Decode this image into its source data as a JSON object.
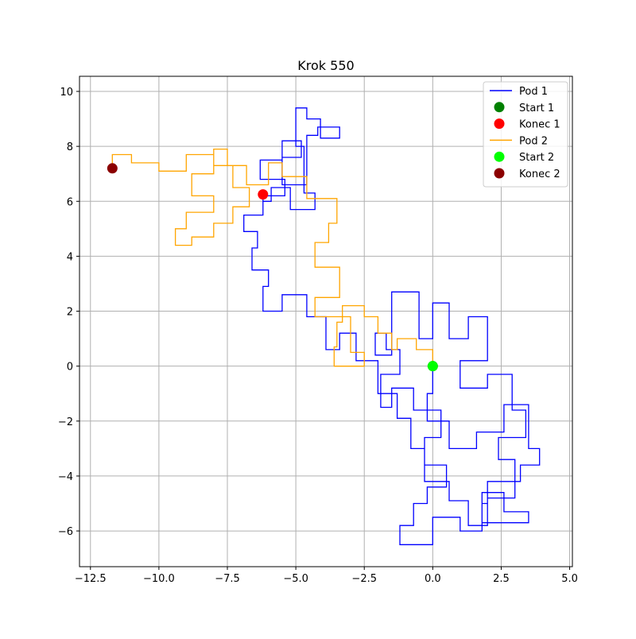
{
  "chart_data": {
    "type": "line",
    "title": "Krok 550",
    "xlabel": "",
    "ylabel": "",
    "xlim": [
      -12.9,
      5.1
    ],
    "ylim": [
      -7.3,
      10.55
    ],
    "xticks": [
      -12.5,
      -10.0,
      -7.5,
      -5.0,
      -2.5,
      0.0,
      2.5,
      5.0
    ],
    "xtick_labels": [
      "−12.5",
      "−10.0",
      "−7.5",
      "−5.0",
      "−2.5",
      "0.0",
      "2.5",
      "5.0"
    ],
    "yticks": [
      -6,
      -4,
      -2,
      0,
      2,
      4,
      6,
      8,
      10
    ],
    "ytick_labels": [
      "−6",
      "−4",
      "−2",
      "0",
      "2",
      "4",
      "6",
      "8",
      "10"
    ],
    "grid": true,
    "legend_position": "top-right",
    "legend": [
      {
        "label": "Pod 1",
        "kind": "line",
        "color": "#0000ff"
      },
      {
        "label": "Start 1",
        "kind": "marker",
        "color": "#008000"
      },
      {
        "label": "Konec 1",
        "kind": "marker",
        "color": "#ff0000"
      },
      {
        "label": "Pod 2",
        "kind": "line",
        "color": "#ffa500"
      },
      {
        "label": "Start 2",
        "kind": "marker",
        "color": "#00ff00"
      },
      {
        "label": "Konec 2",
        "kind": "marker",
        "color": "#8b0000"
      }
    ],
    "series": [
      {
        "name": "Pod 1",
        "kind": "line",
        "color": "#0000ff",
        "points": [
          [
            0.0,
            0.0
          ],
          [
            0.0,
            -1.0
          ],
          [
            -0.2,
            -1.0
          ],
          [
            -0.2,
            -2.0
          ],
          [
            0.6,
            -2.0
          ],
          [
            0.6,
            -3.0
          ],
          [
            1.6,
            -3.0
          ],
          [
            1.6,
            -2.4
          ],
          [
            2.6,
            -2.4
          ],
          [
            2.6,
            -1.4
          ],
          [
            3.5,
            -1.4
          ],
          [
            3.5,
            -3.0
          ],
          [
            3.9,
            -3.0
          ],
          [
            3.9,
            -3.6
          ],
          [
            3.2,
            -3.6
          ],
          [
            3.2,
            -4.2
          ],
          [
            2.0,
            -4.2
          ],
          [
            2.0,
            -5.0
          ],
          [
            1.8,
            -5.0
          ],
          [
            1.8,
            -5.7
          ],
          [
            3.5,
            -5.7
          ],
          [
            3.5,
            -5.3
          ],
          [
            2.6,
            -5.3
          ],
          [
            2.6,
            -4.6
          ],
          [
            1.8,
            -4.6
          ],
          [
            1.8,
            -6.0
          ],
          [
            1.0,
            -6.0
          ],
          [
            1.0,
            -5.5
          ],
          [
            0.0,
            -5.5
          ],
          [
            0.0,
            -6.5
          ],
          [
            -1.2,
            -6.5
          ],
          [
            -1.2,
            -5.8
          ],
          [
            -0.7,
            -5.8
          ],
          [
            -0.7,
            -5.0
          ],
          [
            -0.2,
            -5.0
          ],
          [
            -0.2,
            -4.4
          ],
          [
            0.5,
            -4.4
          ],
          [
            0.5,
            -3.6
          ],
          [
            -0.3,
            -3.6
          ],
          [
            -0.3,
            -2.6
          ],
          [
            0.3,
            -2.6
          ],
          [
            0.3,
            -1.6
          ],
          [
            -0.7,
            -1.6
          ],
          [
            -0.7,
            -0.8
          ],
          [
            -1.5,
            -0.8
          ],
          [
            -1.5,
            -1.5
          ],
          [
            -1.9,
            -1.5
          ],
          [
            -1.9,
            -0.3
          ],
          [
            -1.2,
            -0.3
          ],
          [
            -1.2,
            0.6
          ],
          [
            -1.7,
            0.6
          ],
          [
            -1.7,
            1.2
          ],
          [
            -2.1,
            1.2
          ],
          [
            -2.1,
            0.4
          ],
          [
            -1.5,
            0.4
          ],
          [
            -1.5,
            2.7
          ],
          [
            -0.5,
            2.7
          ],
          [
            -0.5,
            1.0
          ],
          [
            0.0,
            1.0
          ],
          [
            0.0,
            2.3
          ],
          [
            0.6,
            2.3
          ],
          [
            0.6,
            1.0
          ],
          [
            1.3,
            1.0
          ],
          [
            1.3,
            1.8
          ],
          [
            2.0,
            1.8
          ],
          [
            2.0,
            0.2
          ],
          [
            1.0,
            0.2
          ],
          [
            1.0,
            -0.8
          ],
          [
            2.0,
            -0.8
          ],
          [
            2.0,
            -0.3
          ],
          [
            2.9,
            -0.3
          ],
          [
            2.9,
            -1.6
          ],
          [
            3.4,
            -1.6
          ],
          [
            3.4,
            -2.6
          ],
          [
            2.4,
            -2.6
          ],
          [
            2.4,
            -3.4
          ],
          [
            3.0,
            -3.4
          ],
          [
            3.0,
            -4.8
          ],
          [
            2.0,
            -4.8
          ],
          [
            2.0,
            -5.8
          ],
          [
            1.3,
            -5.8
          ],
          [
            1.3,
            -4.9
          ],
          [
            0.6,
            -4.9
          ],
          [
            0.6,
            -4.2
          ],
          [
            -0.3,
            -4.2
          ],
          [
            -0.3,
            -3.0
          ],
          [
            -0.8,
            -3.0
          ],
          [
            -0.8,
            -1.9
          ],
          [
            -1.3,
            -1.9
          ],
          [
            -1.3,
            -1.0
          ],
          [
            -2.0,
            -1.0
          ],
          [
            -2.0,
            0.2
          ],
          [
            -2.8,
            0.2
          ],
          [
            -2.8,
            1.2
          ],
          [
            -3.4,
            1.2
          ],
          [
            -3.4,
            0.6
          ],
          [
            -3.9,
            0.6
          ],
          [
            -3.9,
            1.8
          ],
          [
            -4.6,
            1.8
          ],
          [
            -4.6,
            2.6
          ],
          [
            -5.5,
            2.6
          ],
          [
            -5.5,
            2.0
          ],
          [
            -6.2,
            2.0
          ],
          [
            -6.2,
            2.9
          ],
          [
            -6.0,
            2.9
          ],
          [
            -6.0,
            3.5
          ],
          [
            -6.6,
            3.5
          ],
          [
            -6.6,
            4.3
          ],
          [
            -6.4,
            4.3
          ],
          [
            -6.4,
            4.9
          ],
          [
            -6.9,
            4.9
          ],
          [
            -6.9,
            5.5
          ],
          [
            -6.2,
            5.5
          ],
          [
            -6.2,
            6.2
          ],
          [
            -5.4,
            6.2
          ],
          [
            -5.4,
            6.8
          ],
          [
            -6.3,
            6.8
          ],
          [
            -6.3,
            7.5
          ],
          [
            -5.5,
            7.5
          ],
          [
            -5.5,
            8.2
          ],
          [
            -4.8,
            8.2
          ],
          [
            -4.8,
            7.6
          ],
          [
            -5.5,
            7.6
          ],
          [
            -5.5,
            6.6
          ],
          [
            -4.6,
            6.6
          ],
          [
            -4.6,
            8.4
          ],
          [
            -4.2,
            8.4
          ],
          [
            -4.2,
            8.7
          ],
          [
            -3.4,
            8.7
          ],
          [
            -3.4,
            8.3
          ],
          [
            -4.1,
            8.3
          ],
          [
            -4.1,
            9.0
          ],
          [
            -4.6,
            9.0
          ],
          [
            -4.6,
            9.4
          ],
          [
            -5.0,
            9.4
          ],
          [
            -5.0,
            8.0
          ],
          [
            -4.7,
            8.0
          ],
          [
            -4.7,
            6.3
          ],
          [
            -4.3,
            6.3
          ],
          [
            -4.3,
            5.7
          ],
          [
            -5.2,
            5.7
          ],
          [
            -5.2,
            6.5
          ],
          [
            -5.9,
            6.5
          ],
          [
            -5.9,
            6.0
          ],
          [
            -6.2,
            6.0
          ],
          [
            -6.2,
            6.25
          ]
        ]
      },
      {
        "name": "Pod 2",
        "kind": "line",
        "color": "#ffa500",
        "points": [
          [
            0.0,
            0.0
          ],
          [
            0.0,
            0.6
          ],
          [
            -0.6,
            0.6
          ],
          [
            -0.6,
            1.0
          ],
          [
            -1.3,
            1.0
          ],
          [
            -1.3,
            0.6
          ],
          [
            -1.5,
            0.6
          ],
          [
            -1.5,
            1.2
          ],
          [
            -2.0,
            1.2
          ],
          [
            -2.0,
            1.8
          ],
          [
            -2.5,
            1.8
          ],
          [
            -2.5,
            2.2
          ],
          [
            -3.3,
            2.2
          ],
          [
            -3.3,
            1.6
          ],
          [
            -3.5,
            1.6
          ],
          [
            -3.5,
            0.7
          ],
          [
            -3.6,
            0.7
          ],
          [
            -3.6,
            0.0
          ],
          [
            -2.5,
            0.0
          ],
          [
            -2.5,
            0.5
          ],
          [
            -3.0,
            0.5
          ],
          [
            -3.0,
            1.8
          ],
          [
            -4.3,
            1.8
          ],
          [
            -4.3,
            2.5
          ],
          [
            -3.4,
            2.5
          ],
          [
            -3.4,
            3.6
          ],
          [
            -4.3,
            3.6
          ],
          [
            -4.3,
            4.5
          ],
          [
            -3.8,
            4.5
          ],
          [
            -3.8,
            5.2
          ],
          [
            -3.5,
            5.2
          ],
          [
            -3.5,
            6.1
          ],
          [
            -4.6,
            6.1
          ],
          [
            -4.6,
            6.9
          ],
          [
            -5.5,
            6.9
          ],
          [
            -5.5,
            7.4
          ],
          [
            -6.0,
            7.4
          ],
          [
            -6.0,
            6.6
          ],
          [
            -6.8,
            6.6
          ],
          [
            -6.8,
            7.3
          ],
          [
            -7.5,
            7.3
          ],
          [
            -7.5,
            7.9
          ],
          [
            -8.0,
            7.9
          ],
          [
            -8.0,
            7.0
          ],
          [
            -8.8,
            7.0
          ],
          [
            -8.8,
            6.2
          ],
          [
            -8.0,
            6.2
          ],
          [
            -8.0,
            5.6
          ],
          [
            -9.0,
            5.6
          ],
          [
            -9.0,
            5.0
          ],
          [
            -9.4,
            5.0
          ],
          [
            -9.4,
            4.4
          ],
          [
            -8.8,
            4.4
          ],
          [
            -8.8,
            4.7
          ],
          [
            -8.0,
            4.7
          ],
          [
            -8.0,
            5.2
          ],
          [
            -7.3,
            5.2
          ],
          [
            -7.3,
            5.8
          ],
          [
            -6.7,
            5.8
          ],
          [
            -6.7,
            6.5
          ],
          [
            -7.3,
            6.5
          ],
          [
            -7.3,
            7.3
          ],
          [
            -8.0,
            7.3
          ],
          [
            -8.0,
            7.7
          ],
          [
            -9.0,
            7.7
          ],
          [
            -9.0,
            7.1
          ],
          [
            -10.0,
            7.1
          ],
          [
            -10.0,
            7.4
          ],
          [
            -11.0,
            7.4
          ],
          [
            -11.0,
            7.7
          ],
          [
            -11.7,
            7.7
          ],
          [
            -11.7,
            7.2
          ]
        ]
      },
      {
        "name": "Start 1",
        "kind": "marker",
        "color": "#008000",
        "points": [
          [
            0.0,
            0.0
          ]
        ]
      },
      {
        "name": "Konec 1",
        "kind": "marker",
        "color": "#ff0000",
        "points": [
          [
            -6.2,
            6.25
          ]
        ]
      },
      {
        "name": "Start 2",
        "kind": "marker",
        "color": "#00ff00",
        "points": [
          [
            0.0,
            0.0
          ]
        ]
      },
      {
        "name": "Konec 2",
        "kind": "marker",
        "color": "#8b0000",
        "points": [
          [
            -11.7,
            7.2
          ]
        ]
      }
    ]
  }
}
